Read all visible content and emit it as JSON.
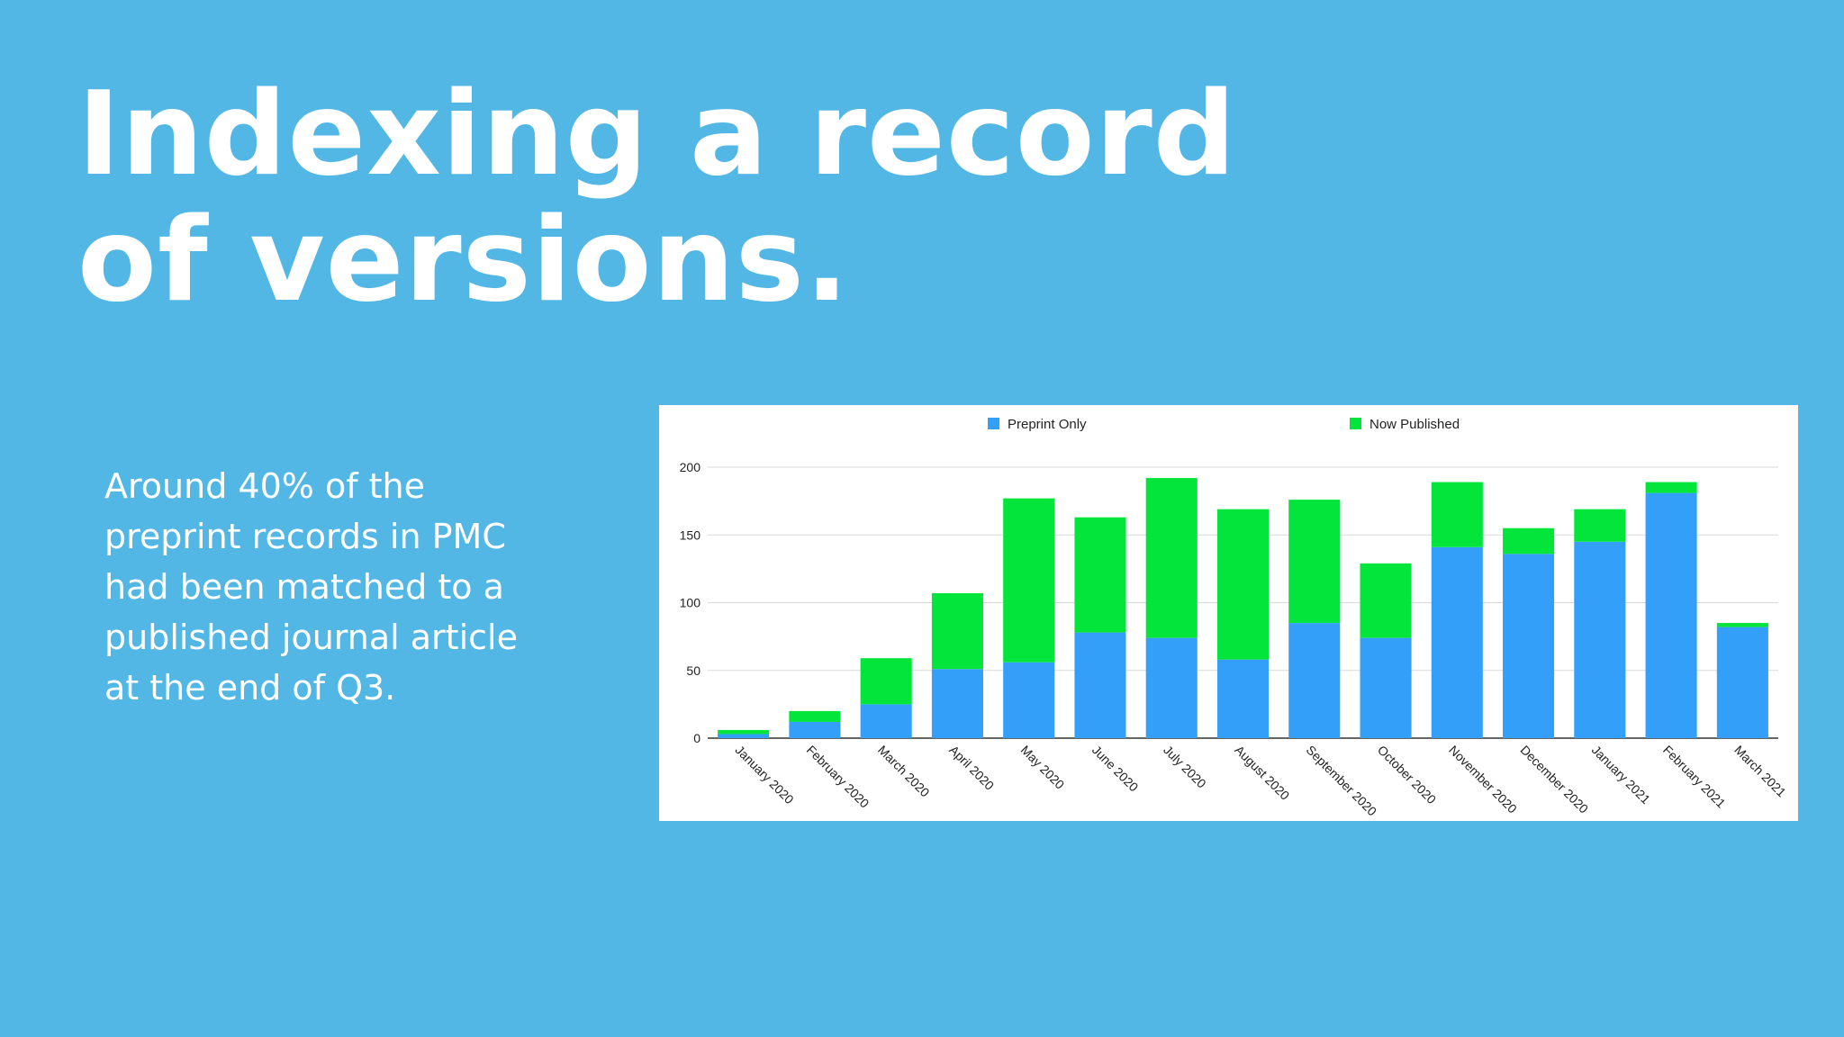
{
  "slide": {
    "title_lines": [
      "Indexing a record",
      "of versions."
    ],
    "body_lines": [
      "Around 40% of the",
      "preprint records in PMC",
      "had been matched to a",
      "published journal article",
      "at the end of Q3."
    ]
  },
  "colors": {
    "background": "#52b7e5",
    "preprint_only": "#339ff8",
    "now_published": "#03e53b"
  },
  "chart_data": {
    "type": "bar",
    "stacked": true,
    "categories": [
      "January 2020",
      "February 2020",
      "March 2020",
      "April 2020",
      "May 2020",
      "June 2020",
      "July 2020",
      "August 2020",
      "September 2020",
      "October 2020",
      "November 2020",
      "December 2020",
      "January 2021",
      "February 2021",
      "March 2021"
    ],
    "series": [
      {
        "name": "Preprint Only",
        "color": "#339ff8",
        "values": [
          3,
          12,
          25,
          51,
          56,
          78,
          74,
          58,
          85,
          74,
          141,
          136,
          145,
          181,
          82
        ]
      },
      {
        "name": "Now Published",
        "color": "#03e53b",
        "values": [
          3,
          8,
          34,
          56,
          121,
          85,
          118,
          111,
          91,
          55,
          48,
          19,
          24,
          8,
          3
        ]
      }
    ],
    "y_ticks": [
      0,
      50,
      100,
      150,
      200
    ],
    "ylim": [
      0,
      200
    ],
    "grid": true,
    "legend_position": "top"
  }
}
